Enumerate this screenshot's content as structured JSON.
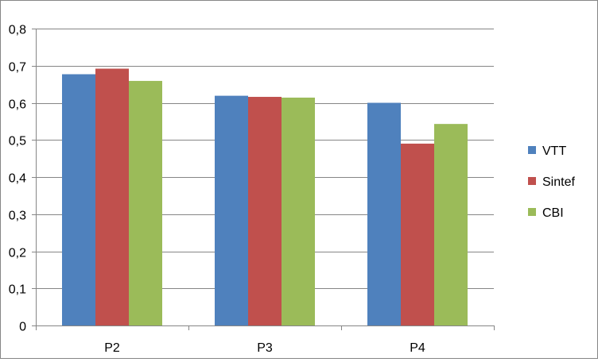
{
  "chart_data": {
    "type": "bar",
    "title": "",
    "xlabel": "",
    "ylabel": "",
    "categories": [
      "P2",
      "P3",
      "P4"
    ],
    "series": [
      {
        "name": "VTT",
        "values": [
          0.677,
          0.619,
          0.6
        ],
        "color": "#4F81BD"
      },
      {
        "name": "Sintef",
        "values": [
          0.692,
          0.616,
          0.49
        ],
        "color": "#C0504D"
      },
      {
        "name": "CBI",
        "values": [
          0.659,
          0.614,
          0.543
        ],
        "color": "#9BBB59"
      }
    ],
    "ylim": [
      0,
      0.8
    ],
    "yticks": [
      0,
      0.1,
      0.2,
      0.3,
      0.4,
      0.5,
      0.6,
      0.7,
      0.8
    ],
    "ytick_labels": [
      "0",
      "0,1",
      "0,2",
      "0,3",
      "0,4",
      "0,5",
      "0,6",
      "0,7",
      "0,8"
    ],
    "grid": true,
    "legend_position": "right",
    "gridline_color": "#868686"
  }
}
